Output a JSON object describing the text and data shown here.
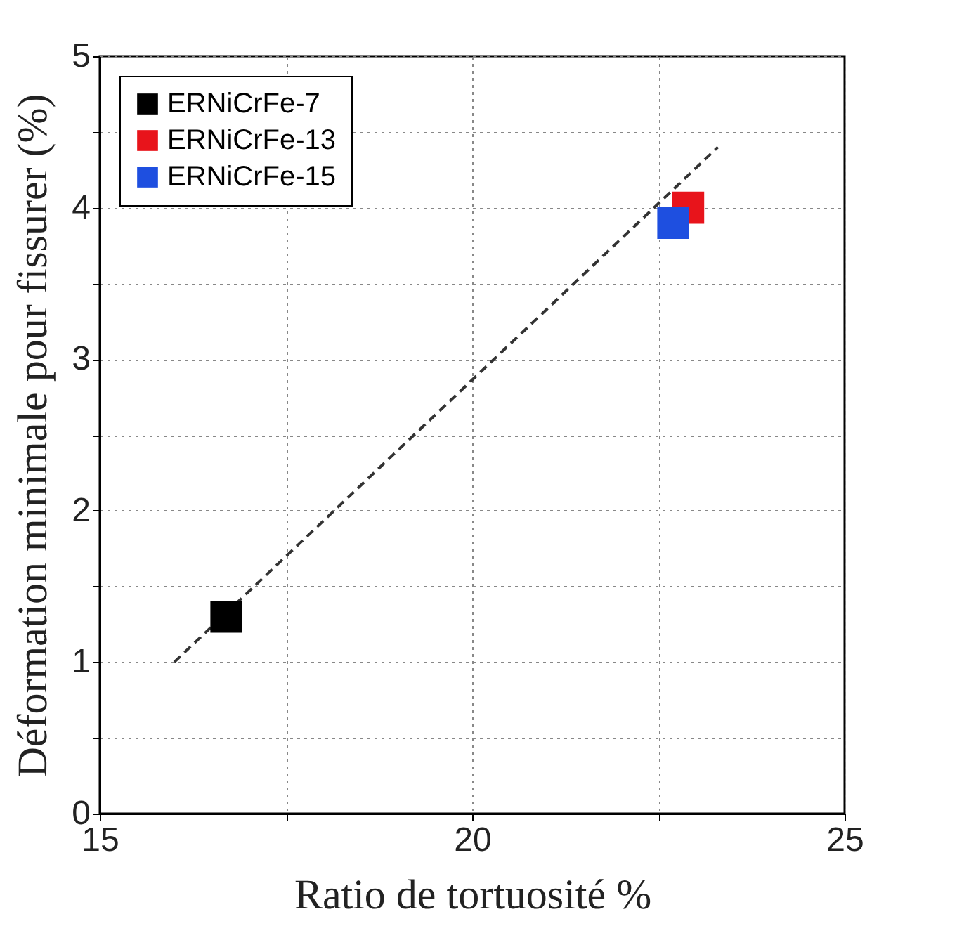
{
  "chart_data": {
    "type": "scatter",
    "xlabel": "Ratio de tortuosité %",
    "ylabel": "Déformation minimale pour fissurer (%)",
    "xlim": [
      15,
      25
    ],
    "ylim": [
      0,
      5
    ],
    "xticks": [
      15,
      {
        "value": 17.5,
        "label": null
      },
      20,
      {
        "value": 22.5,
        "label": null
      },
      25
    ],
    "yticks": [
      0,
      {
        "value": 0.5,
        "label": null
      },
      1,
      {
        "value": 1.5,
        "label": null
      },
      2,
      {
        "value": 2.5,
        "label": null
      },
      3,
      {
        "value": 3.5,
        "label": null
      },
      4,
      {
        "value": 4.5,
        "label": null
      },
      5
    ],
    "grid": true,
    "legend": "top left",
    "series": [
      {
        "name": "ERNiCrFe-7",
        "color": "#000000",
        "marker": "square",
        "x": [
          16.7
        ],
        "values": [
          1.3
        ]
      },
      {
        "name": "ERNiCrFe-13",
        "color": "#e8141b",
        "marker": "square",
        "x": [
          22.9
        ],
        "values": [
          4.0
        ]
      },
      {
        "name": "ERNiCrFe-15",
        "color": "#1e4fe0",
        "marker": "square",
        "x": [
          22.7
        ],
        "values": [
          3.9
        ]
      },
      {
        "type": "line",
        "color": "#333333",
        "line_style": "dashed",
        "x": [
          16.0,
          23.3
        ],
        "values": [
          1.0,
          4.4
        ]
      }
    ]
  }
}
